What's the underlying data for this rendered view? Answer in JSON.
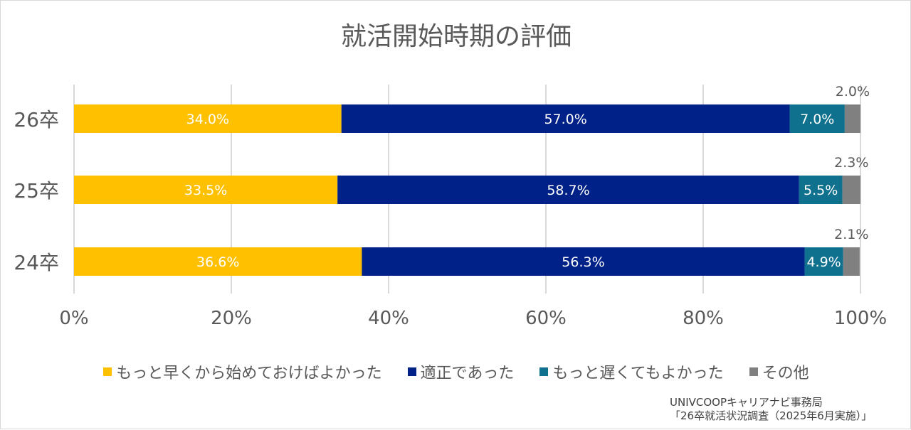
{
  "chart_data": {
    "type": "bar",
    "orientation": "horizontal",
    "stacked": true,
    "percent": true,
    "title": "就活開始時期の評価",
    "categories": [
      "26卒",
      "25卒",
      "24卒"
    ],
    "series": [
      {
        "name": "もっと早くから始めておけばよかった",
        "values": [
          34.0,
          33.5,
          36.6
        ],
        "labels": [
          "34.0%",
          "33.5%",
          "36.6%"
        ],
        "color": "#FFC000",
        "label_color": "#FFFFFF"
      },
      {
        "name": "適正であった",
        "values": [
          57.0,
          58.7,
          56.3
        ],
        "labels": [
          "57.0%",
          "58.7%",
          "56.3%"
        ],
        "color": "#002288",
        "label_color": "#FFFFFF"
      },
      {
        "name": "もっと遅くてもよかった",
        "values": [
          7.0,
          5.5,
          4.9
        ],
        "labels": [
          "7.0%",
          "5.5%",
          "4.9%"
        ],
        "color": "#10718F",
        "label_color": "#FFFFFF"
      },
      {
        "name": "その他",
        "values": [
          2.0,
          2.3,
          2.1
        ],
        "labels": [
          "2.0%",
          "2.3%",
          "2.1%"
        ],
        "color": "#808080",
        "label_color": "#595959",
        "label_position": "above"
      }
    ],
    "xlim": [
      0,
      100
    ],
    "x_ticks": [
      "0%",
      "20%",
      "40%",
      "60%",
      "80%",
      "100%"
    ],
    "grid": true,
    "legend_position": "bottom",
    "xlabel": "",
    "ylabel": ""
  },
  "source": {
    "line1": "UNIVCOOPキャリアナビ事務局",
    "line2": "「26卒就活状況調査（2025年6月実施）」"
  }
}
